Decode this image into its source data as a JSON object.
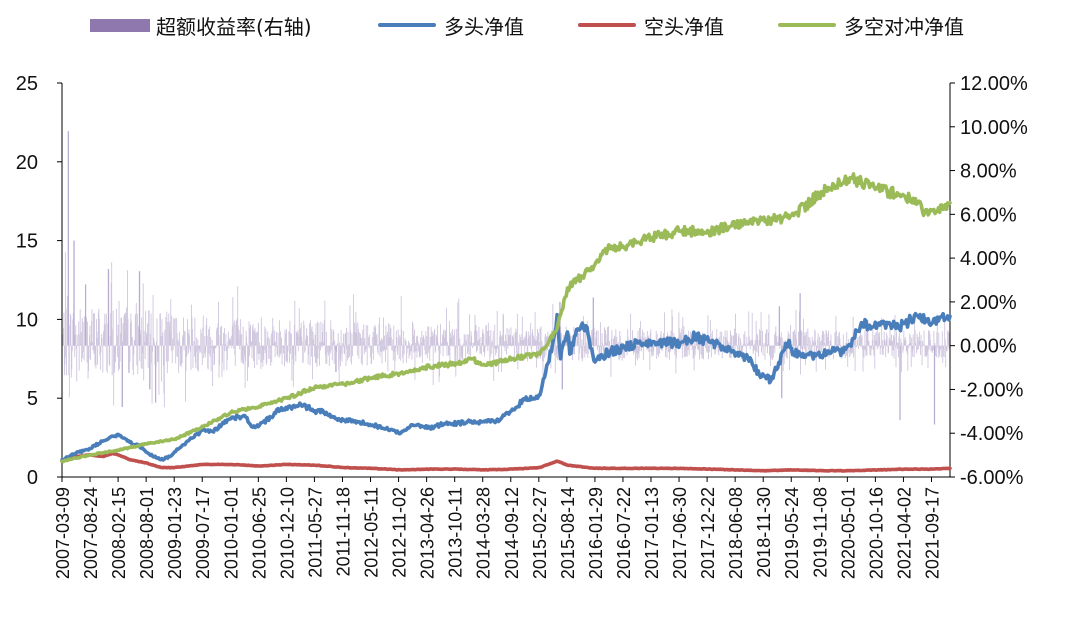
{
  "legend": [
    {
      "key": "excess",
      "label": "超额收益率(右轴)",
      "kind": "bar",
      "color": "#8e78ae"
    },
    {
      "key": "long",
      "label": "多头净值",
      "kind": "line",
      "color": "#4a7ebb"
    },
    {
      "key": "short",
      "label": "空头净值",
      "kind": "line",
      "color": "#c0504d"
    },
    {
      "key": "hedge",
      "label": "多空对冲净值",
      "kind": "line",
      "color": "#9bbb59"
    }
  ],
  "chart_data": {
    "type": "line",
    "left_axis": {
      "min": 0,
      "max": 25,
      "ticks": [
        "0",
        "5",
        "10",
        "15",
        "20",
        "25"
      ]
    },
    "right_axis": {
      "min": -0.06,
      "max": 0.12,
      "ticks": [
        "-6.00%",
        "-4.00%",
        "-2.00%",
        "0.00%",
        "2.00%",
        "4.00%",
        "6.00%",
        "8.00%",
        "10.00%",
        "12.00%"
      ]
    },
    "x_ticks": [
      "2007-03-09",
      "2007-08-24",
      "2008-02-15",
      "2008-08-01",
      "2009-01-23",
      "2009-07-17",
      "2010-01-01",
      "2010-06-25",
      "2010-12-10",
      "2011-05-27",
      "2011-11-18",
      "2012-05-11",
      "2012-11-02",
      "2013-04-26",
      "2013-10-11",
      "2014-03-28",
      "2014-09-12",
      "2015-02-27",
      "2015-08-14",
      "2016-01-29",
      "2016-07-22",
      "2017-01-13",
      "2017-06-30",
      "2017-12-22",
      "2018-06-08",
      "2018-11-30",
      "2019-05-24",
      "2019-11-08",
      "2020-05-01",
      "2020-10-16",
      "2021-04-02",
      "2021-09-17"
    ],
    "x_range": [
      "2007-03-09",
      "2021-12-31"
    ],
    "series": [
      {
        "name": "多头净值",
        "axis": "left",
        "color": "#4a7ebb",
        "points": [
          [
            "2007-03-09",
            1.1
          ],
          [
            "2007-06-01",
            1.5
          ],
          [
            "2007-08-24",
            1.8
          ],
          [
            "2007-11-16",
            2.3
          ],
          [
            "2008-01-11",
            2.6
          ],
          [
            "2008-02-15",
            2.7
          ],
          [
            "2008-04-25",
            2.2
          ],
          [
            "2008-06-20",
            2.0
          ],
          [
            "2008-08-01",
            1.6
          ],
          [
            "2008-10-31",
            1.1
          ],
          [
            "2008-12-26",
            1.3
          ],
          [
            "2009-01-23",
            1.6
          ],
          [
            "2009-04-17",
            2.3
          ],
          [
            "2009-07-17",
            3.0
          ],
          [
            "2009-09-11",
            2.9
          ],
          [
            "2009-11-20",
            3.4
          ],
          [
            "2010-01-01",
            3.7
          ],
          [
            "2010-03-26",
            3.9
          ],
          [
            "2010-05-07",
            3.2
          ],
          [
            "2010-06-25",
            3.3
          ],
          [
            "2010-09-03",
            3.8
          ],
          [
            "2010-11-05",
            4.4
          ],
          [
            "2010-12-10",
            4.3
          ],
          [
            "2011-03-04",
            4.6
          ],
          [
            "2011-05-27",
            4.2
          ],
          [
            "2011-08-05",
            4.1
          ],
          [
            "2011-09-30",
            3.7
          ],
          [
            "2011-11-18",
            3.6
          ],
          [
            "2012-02-24",
            3.5
          ],
          [
            "2012-05-11",
            3.3
          ],
          [
            "2012-08-31",
            3.0
          ],
          [
            "2012-11-02",
            2.8
          ],
          [
            "2012-12-28",
            3.2
          ],
          [
            "2013-02-22",
            3.3
          ],
          [
            "2013-04-26",
            3.1
          ],
          [
            "2013-06-28",
            3.3
          ],
          [
            "2013-08-30",
            3.4
          ],
          [
            "2013-10-11",
            3.4
          ],
          [
            "2013-12-27",
            3.5
          ],
          [
            "2014-03-28",
            3.5
          ],
          [
            "2014-06-27",
            3.6
          ],
          [
            "2014-09-12",
            4.3
          ],
          [
            "2014-11-28",
            4.9
          ],
          [
            "2015-01-16",
            5.0
          ],
          [
            "2015-02-27",
            5.2
          ],
          [
            "2015-04-17",
            7.2
          ],
          [
            "2015-05-15",
            8.4
          ],
          [
            "2015-06-12",
            10.3
          ],
          [
            "2015-07-03",
            7.5
          ],
          [
            "2015-07-24",
            8.6
          ],
          [
            "2015-08-14",
            9.2
          ],
          [
            "2015-08-28",
            7.8
          ],
          [
            "2015-10-16",
            9.4
          ],
          [
            "2015-12-04",
            9.6
          ],
          [
            "2016-01-15",
            7.8
          ],
          [
            "2016-01-29",
            7.3
          ],
          [
            "2016-04-15",
            7.9
          ],
          [
            "2016-07-22",
            8.2
          ],
          [
            "2016-10-14",
            8.5
          ],
          [
            "2017-01-13",
            8.6
          ],
          [
            "2017-03-31",
            8.5
          ],
          [
            "2017-06-30",
            8.5
          ],
          [
            "2017-09-29",
            8.9
          ],
          [
            "2017-12-22",
            8.6
          ],
          [
            "2018-03-16",
            8.3
          ],
          [
            "2018-06-08",
            7.8
          ],
          [
            "2018-09-07",
            7.4
          ],
          [
            "2018-10-26",
            6.5
          ],
          [
            "2018-11-30",
            6.4
          ],
          [
            "2019-01-04",
            6.1
          ],
          [
            "2019-04-19",
            8.5
          ],
          [
            "2019-05-24",
            7.9
          ],
          [
            "2019-08-16",
            7.8
          ],
          [
            "2019-11-08",
            7.7
          ],
          [
            "2020-01-17",
            8.2
          ],
          [
            "2020-03-20",
            7.9
          ],
          [
            "2020-05-01",
            8.4
          ],
          [
            "2020-07-10",
            9.8
          ],
          [
            "2020-09-04",
            9.4
          ],
          [
            "2020-10-16",
            9.7
          ],
          [
            "2020-12-25",
            9.8
          ],
          [
            "2021-02-19",
            9.5
          ],
          [
            "2021-04-02",
            9.8
          ],
          [
            "2021-06-25",
            10.1
          ],
          [
            "2021-09-17",
            9.8
          ],
          [
            "2021-10-22",
            9.9
          ],
          [
            "2021-12-31",
            10.2
          ]
        ]
      },
      {
        "name": "空头净值",
        "axis": "left",
        "color": "#c0504d",
        "points": [
          [
            "2007-03-09",
            1.0
          ],
          [
            "2007-06-01",
            1.3
          ],
          [
            "2007-08-24",
            1.4
          ],
          [
            "2007-11-16",
            1.3
          ],
          [
            "2008-01-11",
            1.5
          ],
          [
            "2008-02-15",
            1.4
          ],
          [
            "2008-04-25",
            1.1
          ],
          [
            "2008-08-01",
            0.9
          ],
          [
            "2008-10-31",
            0.6
          ],
          [
            "2009-01-23",
            0.6
          ],
          [
            "2009-07-17",
            0.8
          ],
          [
            "2010-01-01",
            0.8
          ],
          [
            "2010-06-25",
            0.7
          ],
          [
            "2010-12-10",
            0.8
          ],
          [
            "2011-05-27",
            0.75
          ],
          [
            "2011-11-18",
            0.6
          ],
          [
            "2012-05-11",
            0.55
          ],
          [
            "2012-11-02",
            0.45
          ],
          [
            "2013-04-26",
            0.5
          ],
          [
            "2013-10-11",
            0.5
          ],
          [
            "2014-03-28",
            0.45
          ],
          [
            "2014-09-12",
            0.5
          ],
          [
            "2015-02-27",
            0.6
          ],
          [
            "2015-06-12",
            1.0
          ],
          [
            "2015-08-14",
            0.75
          ],
          [
            "2016-01-29",
            0.55
          ],
          [
            "2016-07-22",
            0.55
          ],
          [
            "2017-01-13",
            0.55
          ],
          [
            "2017-06-30",
            0.55
          ],
          [
            "2017-12-22",
            0.5
          ],
          [
            "2018-06-08",
            0.45
          ],
          [
            "2018-11-30",
            0.4
          ],
          [
            "2019-05-24",
            0.45
          ],
          [
            "2019-11-08",
            0.4
          ],
          [
            "2020-05-01",
            0.4
          ],
          [
            "2020-10-16",
            0.45
          ],
          [
            "2021-04-02",
            0.5
          ],
          [
            "2021-09-17",
            0.5
          ],
          [
            "2021-12-31",
            0.55
          ]
        ]
      },
      {
        "name": "多空对冲净值",
        "axis": "left",
        "color": "#9bbb59",
        "points": [
          [
            "2007-03-09",
            1.0
          ],
          [
            "2007-06-01",
            1.2
          ],
          [
            "2007-08-24",
            1.4
          ],
          [
            "2008-02-15",
            1.7
          ],
          [
            "2008-08-01",
            2.1
          ],
          [
            "2009-01-23",
            2.4
          ],
          [
            "2009-07-17",
            3.2
          ],
          [
            "2010-01-01",
            4.1
          ],
          [
            "2010-06-25",
            4.5
          ],
          [
            "2010-12-10",
            5.0
          ],
          [
            "2011-05-27",
            5.7
          ],
          [
            "2011-11-18",
            5.9
          ],
          [
            "2012-05-11",
            6.3
          ],
          [
            "2012-11-02",
            6.6
          ],
          [
            "2013-04-26",
            7.0
          ],
          [
            "2013-10-11",
            7.2
          ],
          [
            "2014-01-10",
            7.5
          ],
          [
            "2014-03-28",
            7.1
          ],
          [
            "2014-09-12",
            7.5
          ],
          [
            "2015-02-27",
            7.8
          ],
          [
            "2015-06-12",
            9.4
          ],
          [
            "2015-08-14",
            12.0
          ],
          [
            "2015-10-16",
            12.5
          ],
          [
            "2016-01-29",
            13.5
          ],
          [
            "2016-04-15",
            14.5
          ],
          [
            "2016-07-22",
            14.6
          ],
          [
            "2017-01-13",
            15.2
          ],
          [
            "2017-06-30",
            15.6
          ],
          [
            "2017-12-22",
            15.6
          ],
          [
            "2018-06-08",
            16.0
          ],
          [
            "2018-11-30",
            16.2
          ],
          [
            "2019-05-24",
            16.6
          ],
          [
            "2019-11-08",
            18.1
          ],
          [
            "2020-02-28",
            18.6
          ],
          [
            "2020-05-01",
            19.0
          ],
          [
            "2020-10-16",
            18.3
          ],
          [
            "2021-04-02",
            17.8
          ],
          [
            "2021-06-25",
            17.5
          ],
          [
            "2021-07-23",
            16.6
          ],
          [
            "2021-09-17",
            16.9
          ],
          [
            "2021-12-31",
            17.4
          ]
        ]
      }
    ],
    "excess_return": {
      "name": "超额收益率(右轴)",
      "axis": "right",
      "color": "#8e78ae",
      "peaks": [
        [
          "2007-04-13",
          0.098
        ],
        [
          "2007-05-18",
          0.048
        ],
        [
          "2007-07-27",
          0.028
        ],
        [
          "2007-12-14",
          0.035
        ],
        [
          "2008-03-07",
          -0.028
        ],
        [
          "2008-06-20",
          0.034
        ],
        [
          "2008-08-22",
          -0.02
        ],
        [
          "2008-09-26",
          -0.026
        ],
        [
          "2011-09-30",
          -0.012
        ],
        [
          "2015-06-26",
          0.02
        ],
        [
          "2015-07-10",
          -0.02
        ],
        [
          "2016-01-15",
          0.022
        ],
        [
          "2019-02-22",
          0.018
        ],
        [
          "2019-03-08",
          -0.024
        ],
        [
          "2019-06-28",
          0.024
        ],
        [
          "2021-02-26",
          -0.034
        ],
        [
          "2021-09-24",
          -0.036
        ]
      ]
    }
  }
}
